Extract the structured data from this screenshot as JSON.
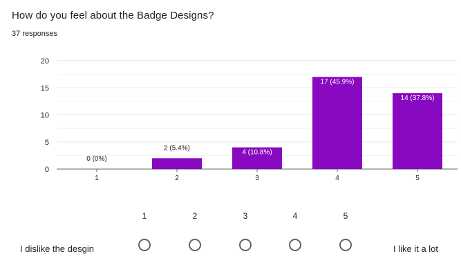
{
  "question": {
    "title": "How do you feel about the Badge Designs?",
    "responses": "37 responses"
  },
  "colors": {
    "bar": "#8809bf",
    "grid": "#e8e8e8",
    "axis": "#5f6368",
    "radio_border": "#5f6368"
  },
  "chart_data": {
    "type": "bar",
    "categories": [
      "1",
      "2",
      "3",
      "4",
      "5"
    ],
    "values": [
      0,
      2,
      4,
      17,
      14
    ],
    "data_labels": [
      "0 (0%)",
      "2 (5.4%)",
      "4 (10.8%)",
      "17 (45.9%)",
      "14 (37.8%)"
    ],
    "yticks": [
      0,
      5,
      10,
      15,
      20
    ],
    "ylim": [
      0,
      20
    ],
    "grid": true,
    "legend": "none",
    "title": "",
    "xlabel": "",
    "ylabel": ""
  },
  "scale": {
    "options": [
      "1",
      "2",
      "3",
      "4",
      "5"
    ],
    "low_label": "I dislike the desgin",
    "high_label": "I like it a lot"
  }
}
